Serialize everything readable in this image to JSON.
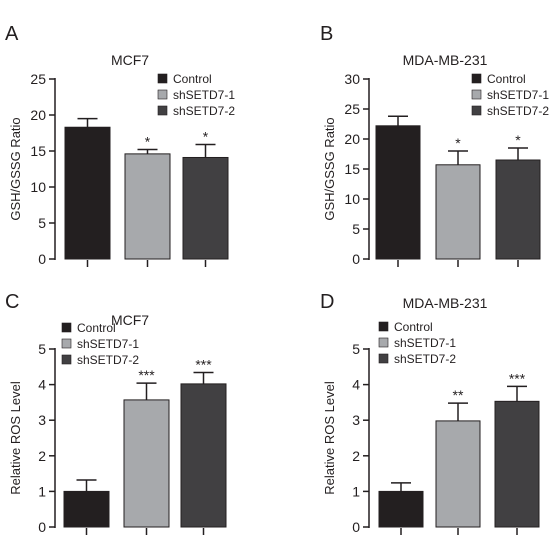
{
  "colors": {
    "Control": "#231f20",
    "shSETD7-1": "#a7a9ac",
    "shSETD7-2": "#414042",
    "axis": "#231f20"
  },
  "chart_data": [
    {
      "panel": "A",
      "type": "bar",
      "title": "MCF7",
      "ylabel": "GSH/GSSG Ratio",
      "xlabel": "",
      "ylim": [
        0,
        25
      ],
      "yticks": [
        0,
        5,
        10,
        15,
        20,
        25
      ],
      "legend": "top-right",
      "grid": false,
      "categories": [
        "Control",
        "shSETD7-1",
        "shSETD7-2"
      ],
      "values": [
        18.3,
        14.6,
        14.1
      ],
      "errors": [
        1.2,
        0.6,
        1.8
      ],
      "annotations": [
        "",
        "*",
        "*"
      ]
    },
    {
      "panel": "B",
      "type": "bar",
      "title": "MDA-MB-231",
      "ylabel": "GSH/GSSG Ratio",
      "xlabel": "",
      "ylim": [
        0,
        30
      ],
      "yticks": [
        0,
        5,
        10,
        15,
        20,
        25,
        30
      ],
      "legend": "top-right",
      "grid": false,
      "categories": [
        "Control",
        "shSETD7-1",
        "shSETD7-2"
      ],
      "values": [
        22.2,
        15.7,
        16.5
      ],
      "errors": [
        1.6,
        2.3,
        2.0
      ],
      "annotations": [
        "",
        "*",
        "*"
      ]
    },
    {
      "panel": "C",
      "type": "bar",
      "title": "MCF7",
      "ylabel": "Relative ROS Level",
      "xlabel": "",
      "ylim": [
        0,
        5
      ],
      "yticks": [
        0,
        1,
        2,
        3,
        4,
        5
      ],
      "legend": "top-left",
      "grid": false,
      "categories": [
        "Control",
        "shSETD7-1",
        "shSETD7-2"
      ],
      "values": [
        1.0,
        3.57,
        4.02
      ],
      "errors": [
        0.32,
        0.47,
        0.32
      ],
      "annotations": [
        "",
        "***",
        "***"
      ]
    },
    {
      "panel": "D",
      "type": "bar",
      "title": "MDA-MB-231",
      "ylabel": "Relative ROS Level",
      "xlabel": "",
      "ylim": [
        0,
        5
      ],
      "yticks": [
        0,
        1,
        2,
        3,
        4,
        5
      ],
      "legend": "top-left",
      "grid": false,
      "categories": [
        "Control",
        "shSETD7-1",
        "shSETD7-2"
      ],
      "values": [
        1.0,
        2.98,
        3.53
      ],
      "errors": [
        0.24,
        0.5,
        0.42
      ],
      "annotations": [
        "",
        "**",
        "***"
      ]
    }
  ]
}
